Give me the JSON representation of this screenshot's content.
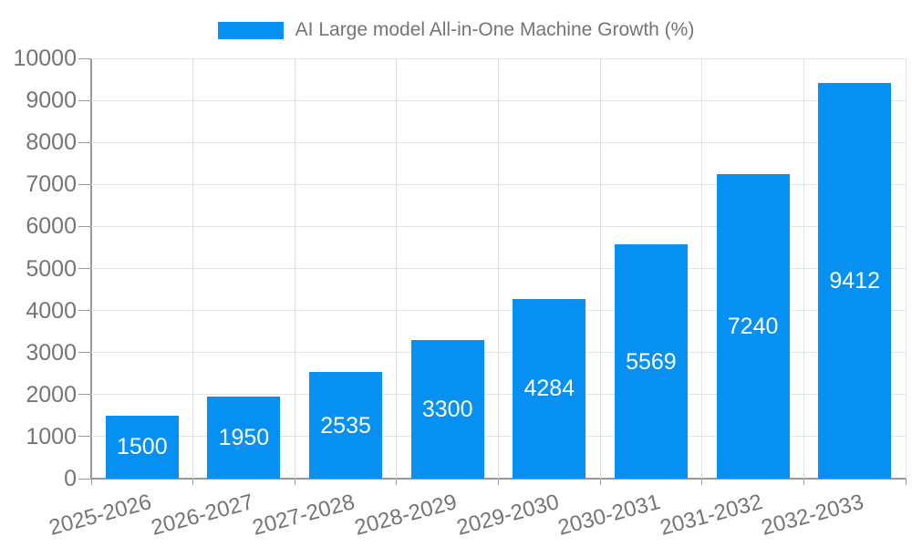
{
  "chart_data": {
    "type": "bar",
    "legend": [
      "AI Large model All-in-One Machine Growth (%)"
    ],
    "categories": [
      "2025-2026",
      "2026-2027",
      "2027-2028",
      "2028-2029",
      "2029-2030",
      "2030-2031",
      "2031-2032",
      "2032-2033"
    ],
    "series": [
      {
        "name": "AI Large model All-in-One Machine Growth (%)",
        "values": [
          1500,
          1950,
          2535,
          3300,
          4284,
          5569,
          7240,
          9412
        ]
      }
    ],
    "title": "",
    "xlabel": "",
    "ylabel": "",
    "ylim": [
      0,
      10000
    ],
    "y_ticks": [
      0,
      1000,
      2000,
      3000,
      4000,
      5000,
      6000,
      7000,
      8000,
      9000,
      10000
    ],
    "grid": true,
    "legend_position": "top-center",
    "x_label_rotation_deg": -15,
    "value_labels_position": "inside-center",
    "colors": {
      "bar": "#0691F2",
      "axis_line": "#999999",
      "grid_line": "#E3E3E3",
      "tick_label": "#757575",
      "legend_text": "#757575",
      "value_label": "#FFFFFF",
      "background": "#FFFFFF"
    }
  }
}
